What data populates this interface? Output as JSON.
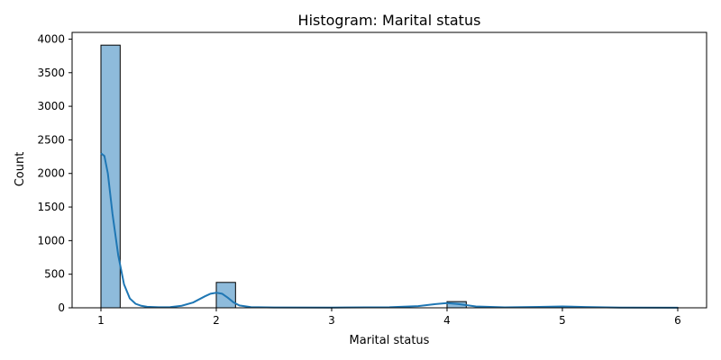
{
  "chart_data": {
    "type": "histogram",
    "title": "Histogram: Marital status",
    "xlabel": "Marital status",
    "ylabel": "Count",
    "xlim": [
      0.75,
      6.25
    ],
    "ylim": [
      0,
      4100
    ],
    "xticks": [
      "1",
      "2",
      "3",
      "4",
      "5",
      "6"
    ],
    "yticks": [
      "0",
      "500",
      "1000",
      "1500",
      "2000",
      "2500",
      "3000",
      "3500",
      "4000"
    ],
    "bins": [
      {
        "x0": 1.0,
        "x1": 1.1667,
        "count": 3910
      },
      {
        "x0": 2.0,
        "x1": 2.1667,
        "count": 378
      },
      {
        "x0": 4.0,
        "x1": 4.1667,
        "count": 92
      },
      {
        "x0": 5.0,
        "x1": 5.1667,
        "count": 12
      },
      {
        "x0": 5.8333,
        "x1": 6.0,
        "count": 6
      }
    ],
    "kde": {
      "x": [
        1.0,
        1.03,
        1.06,
        1.1,
        1.15,
        1.2,
        1.25,
        1.3,
        1.35,
        1.4,
        1.5,
        1.6,
        1.7,
        1.8,
        1.9,
        1.95,
        2.0,
        2.05,
        2.1,
        2.15,
        2.2,
        2.3,
        2.5,
        3.0,
        3.5,
        3.75,
        3.9,
        4.0,
        4.1,
        4.25,
        4.5,
        4.8,
        5.0,
        5.2,
        5.5,
        6.0
      ],
      "y": [
        2300,
        2260,
        2000,
        1400,
        780,
        350,
        140,
        60,
        30,
        15,
        8,
        10,
        30,
        80,
        170,
        210,
        225,
        210,
        150,
        80,
        35,
        10,
        5,
        4,
        8,
        25,
        55,
        70,
        55,
        20,
        6,
        14,
        20,
        12,
        4,
        2
      ]
    },
    "colors": {
      "bar_fill": "#8ebbdb",
      "bar_edge": "#000000",
      "kde_line": "#1f77b4",
      "axes": "#000000"
    },
    "grid": false,
    "legend": "none"
  }
}
